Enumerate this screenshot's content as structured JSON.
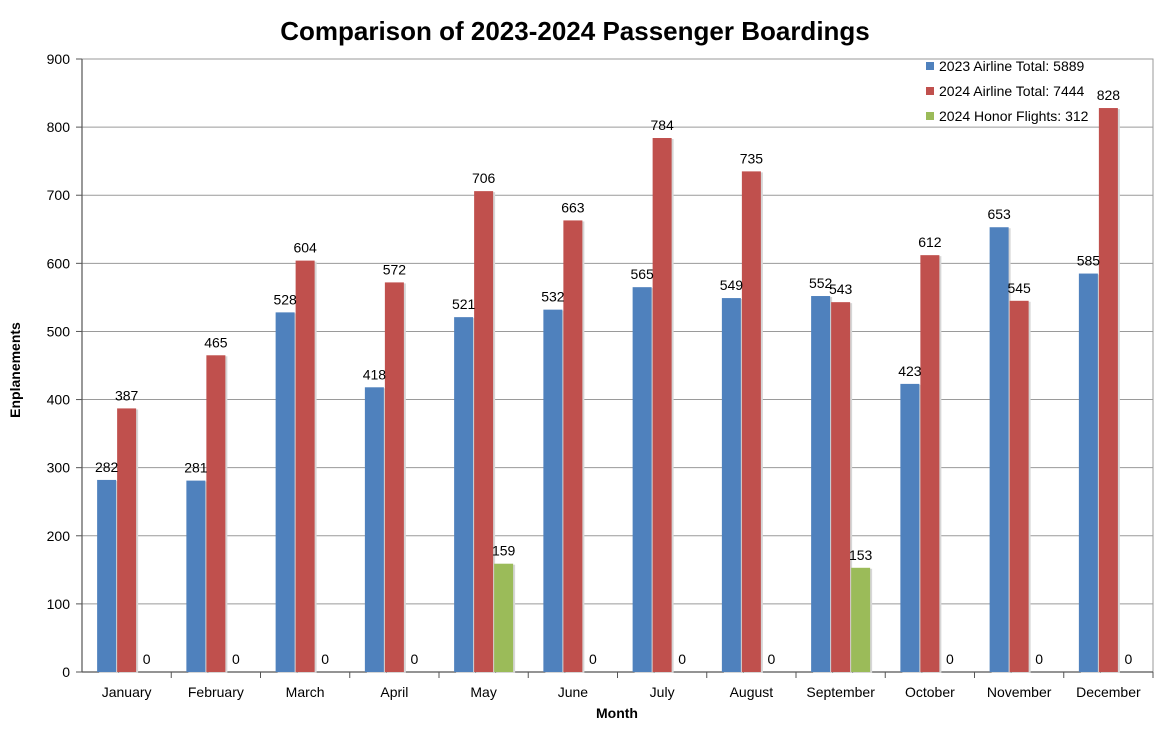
{
  "chart_data": {
    "type": "bar",
    "title": "Comparison of 2023-2024 Passenger Boardings",
    "xlabel": "Month",
    "ylabel": "Enplanements",
    "ylim": [
      0,
      900
    ],
    "ytick_step": 100,
    "grid": true,
    "legend_position": "top-right",
    "categories": [
      "January",
      "February",
      "March",
      "April",
      "May",
      "June",
      "July",
      "August",
      "September",
      "October",
      "November",
      "December"
    ],
    "series": [
      {
        "name": "2023 Airline Total: 5889",
        "color": "#4f81bd",
        "values": [
          282,
          281,
          528,
          418,
          521,
          532,
          565,
          549,
          552,
          423,
          653,
          585
        ]
      },
      {
        "name": "2024 Airline Total: 7444",
        "color": "#c0504d",
        "values": [
          387,
          465,
          604,
          572,
          706,
          663,
          784,
          735,
          543,
          612,
          545,
          828
        ]
      },
      {
        "name": "2024 Honor Flights: 312",
        "color": "#9bbb59",
        "values": [
          0,
          0,
          0,
          0,
          159,
          0,
          0,
          0,
          153,
          0,
          0,
          0
        ]
      }
    ]
  }
}
